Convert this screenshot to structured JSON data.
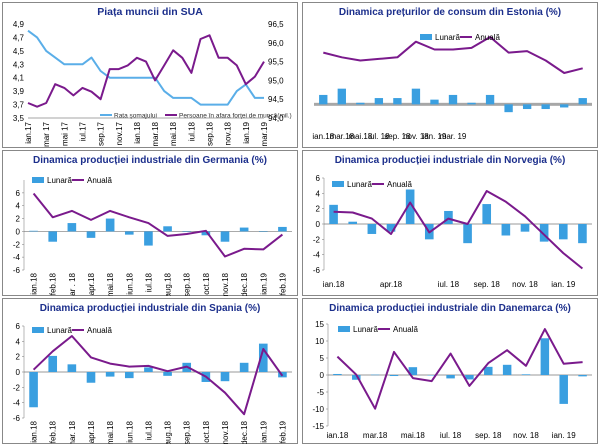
{
  "colors": {
    "bar": "#3a9fe0",
    "line": "#7a1a8c",
    "line_blue": "#5aaee8",
    "title": "#1c2f8c",
    "band": "#a7a7a7"
  },
  "chart_data": [
    {
      "id": "p1",
      "type": "line",
      "title": "Piața muncii din SUA",
      "categories": [
        "ian.17",
        "feb.17",
        "mar.17",
        "apr.17",
        "mai 17",
        "iun.17",
        "iul.17",
        "aug.17",
        "sep.17",
        "oct.17",
        "nov.17",
        "dec.17",
        "ian.18",
        "feb.18",
        "mar.18",
        "apr.18",
        "mai.18",
        "iun.18",
        "iul.18",
        "aug.18",
        "sep.18",
        "oct.18",
        "nov.18",
        "dec.18",
        "ian.19",
        "feb.19",
        "mar.19"
      ],
      "xticks": [
        "ian.17",
        "mar 17",
        "mai 17",
        "iul.17",
        "sep.17",
        "nov.17",
        "ian.18",
        "mar.18",
        "mai.18",
        "iul.18",
        "sep.18",
        "nov.18",
        "ian.19",
        "mar.19"
      ],
      "xtick_index": [
        0,
        2,
        4,
        6,
        8,
        10,
        12,
        14,
        16,
        18,
        20,
        22,
        24,
        26
      ],
      "ylim": [
        3.5,
        4.9
      ],
      "yticks": [
        3.5,
        3.7,
        3.9,
        4.1,
        4.3,
        4.5,
        4.7,
        4.9
      ],
      "y2lim": [
        94.0,
        96.5
      ],
      "y2ticks": [
        94.0,
        94.5,
        95.0,
        95.5,
        96.0,
        96.5
      ],
      "series": [
        {
          "name": "Rata șomajului",
          "axis": "left",
          "color": "#5aaee8",
          "values": [
            4.8,
            4.7,
            4.5,
            4.4,
            4.3,
            4.3,
            4.3,
            4.4,
            4.2,
            4.1,
            4.1,
            4.1,
            4.1,
            4.1,
            4.1,
            3.9,
            3.8,
            3.8,
            3.8,
            3.7,
            3.7,
            3.7,
            3.7,
            3.9,
            4.0,
            3.8,
            3.8
          ]
        },
        {
          "name": "Persoane în afara forței de muncă(mil.)",
          "axis": "right",
          "color": "#7a1a8c",
          "values": [
            94.4,
            94.3,
            94.4,
            94.9,
            94.8,
            94.6,
            94.8,
            94.7,
            94.5,
            95.3,
            95.3,
            95.4,
            95.6,
            95.5,
            95.0,
            95.4,
            95.8,
            95.6,
            95.2,
            96.1,
            96.2,
            95.6,
            95.6,
            95.4,
            94.9,
            95.1,
            95.5
          ]
        }
      ]
    },
    {
      "id": "p2",
      "type": "bar+line",
      "title": "Dinamica prețurilor de consum din Estonia (%)",
      "legend": [
        "Lunară",
        "Anuală"
      ],
      "categories": [
        "ian.18",
        "feb.18",
        "mar.18",
        "apr.18",
        "mai.18",
        "iun.18",
        "iul.18",
        "aug.18",
        "sep.18",
        "oct.18",
        "nov.18",
        "dec.18",
        "ian.19",
        "feb.19",
        "mar.19"
      ],
      "xticks": [
        "ian.18",
        "mar.18",
        "mai.18",
        "iul. 18",
        "sep. 18",
        "nov. 18",
        "ian. 19",
        "mar. 19"
      ],
      "ylim": [
        -1,
        5
      ],
      "zero_band": true,
      "series": [
        {
          "name": "Lunară",
          "kind": "bar",
          "values": [
            0.6,
            1.0,
            0.1,
            0.4,
            0.4,
            1.0,
            0.3,
            0.6,
            0.1,
            0.6,
            -0.5,
            -0.3,
            -0.3,
            -0.2,
            0.4
          ]
        },
        {
          "name": "Anuală",
          "kind": "line",
          "values": [
            3.3,
            3.0,
            2.8,
            2.9,
            3.0,
            4.0,
            3.5,
            3.5,
            3.6,
            4.3,
            3.3,
            3.4,
            2.8,
            2.0,
            2.3
          ]
        }
      ]
    },
    {
      "id": "p3",
      "type": "bar+line",
      "title": "Dinamica producției industriale din Germania (%)",
      "legend": [
        "Lunară",
        "Anuală"
      ],
      "categories": [
        "ian.18",
        "feb.18",
        "mar.18",
        "apr.18",
        "mai.18",
        "iun.18",
        "iul.18",
        "aug.18",
        "sep.18",
        "oct.18",
        "nov.18",
        "dec.18",
        "ian.19",
        "feb.19"
      ],
      "xticks": [
        "ian.18",
        "feb.18",
        "mar . 18",
        "apr.18",
        "mai.18",
        "iun.18",
        "iul.18",
        "aug.18",
        "sep.18",
        "oct.18",
        "nov.18",
        "dec.18",
        "ian.19",
        "feb.19"
      ],
      "ylim": [
        -6,
        8
      ],
      "yticks": [
        -6,
        -4,
        -2,
        0,
        2,
        4,
        6
      ],
      "series": [
        {
          "name": "Lunară",
          "kind": "bar",
          "values": [
            0.1,
            -1.6,
            1.3,
            -1.0,
            2.0,
            -0.5,
            -2.2,
            0.8,
            0.0,
            -0.6,
            -1.6,
            0.6,
            0.0,
            0.7
          ]
        },
        {
          "name": "Anuală",
          "kind": "line",
          "values": [
            5.9,
            2.2,
            3.2,
            1.8,
            3.2,
            2.2,
            1.3,
            -0.7,
            -0.4,
            0.1,
            -3.9,
            -2.7,
            -2.8,
            -0.5
          ]
        }
      ]
    },
    {
      "id": "p4",
      "type": "bar+line",
      "title": "Dinamica producției industriale din Norvegia (%)",
      "legend": [
        "Lunară",
        "Anuală"
      ],
      "categories": [
        "ian.18",
        "feb.18",
        "mar.18",
        "apr.18",
        "mai.18",
        "iun.18",
        "iul.18",
        "aug.18",
        "sep.18",
        "oct.18",
        "nov.18",
        "dec.18",
        "ian.19",
        "feb.19"
      ],
      "xticks": [
        "ian.18",
        "apr.18",
        "iul. 18",
        "sep. 18",
        "nov. 18",
        "ian. 19"
      ],
      "xtick_index": [
        0,
        3,
        6,
        8,
        10,
        12
      ],
      "ylim": [
        -6,
        6
      ],
      "yticks": [
        -6,
        -4,
        -2,
        0,
        2,
        4,
        6
      ],
      "series": [
        {
          "name": "Lunară",
          "kind": "bar",
          "values": [
            2.5,
            0.3,
            -1.3,
            -1.0,
            4.5,
            -2.0,
            1.7,
            -2.5,
            2.6,
            -1.5,
            -1.0,
            -2.3,
            -2.0,
            -2.5
          ]
        },
        {
          "name": "Anuală",
          "kind": "line",
          "values": [
            1.6,
            1.5,
            0.7,
            -1.3,
            2.8,
            -1.1,
            0.7,
            0.0,
            4.3,
            2.9,
            1.0,
            -1.4,
            -3.8,
            -5.8
          ]
        }
      ]
    },
    {
      "id": "p5",
      "type": "bar+line",
      "title": "Dinamica producției industriale din Spania (%)",
      "legend": [
        "Lunară",
        "Anuală"
      ],
      "categories": [
        "ian.18",
        "feb.18",
        "mar.18",
        "apr.18",
        "mai.18",
        "iun.18",
        "iul.18",
        "aug.18",
        "sep.18",
        "oct.18",
        "nov.18",
        "dec.18",
        "ian.19",
        "feb.19"
      ],
      "xticks": [
        "ian.18",
        "feb.18",
        "mar. 18",
        "apr.18",
        "mai.18",
        "iun.18",
        "iul.18",
        "aug.18",
        "sep.18",
        "oct.18",
        "nov.18",
        "dec.18",
        "ian.19",
        "feb.19"
      ],
      "ylim": [
        -6,
        6
      ],
      "yticks": [
        -6,
        -4,
        -2,
        0,
        2,
        4,
        6
      ],
      "series": [
        {
          "name": "Lunară",
          "kind": "bar",
          "values": [
            -4.6,
            2.1,
            1.0,
            -1.4,
            -0.6,
            -0.8,
            0.6,
            -0.5,
            1.2,
            -1.3,
            -1.2,
            1.2,
            3.7,
            -0.7
          ]
        },
        {
          "name": "Anuală",
          "kind": "line",
          "values": [
            0.3,
            2.7,
            4.7,
            1.9,
            1.1,
            0.7,
            0.8,
            0.1,
            0.7,
            -0.6,
            -2.7,
            -5.5,
            3.0,
            -0.5
          ]
        }
      ]
    },
    {
      "id": "p6",
      "type": "bar+line",
      "title": "Dinamica producției industriale din Danemarca (%)",
      "legend": [
        "Lunară",
        "Anuală"
      ],
      "categories": [
        "ian.18",
        "feb.18",
        "mar.18",
        "apr.18",
        "mai.18",
        "iun.18",
        "iul.18",
        "aug.18",
        "sep.18",
        "oct.18",
        "nov.18",
        "dec.18",
        "ian.19",
        "feb.19"
      ],
      "xticks": [
        "ian.18",
        "mar.18",
        "mai.18",
        "iul. 18",
        "sep. 18",
        "nov. 18",
        "ian. 19"
      ],
      "xtick_index": [
        0,
        2,
        4,
        6,
        8,
        10,
        12
      ],
      "ylim": [
        -15,
        15
      ],
      "yticks": [
        -15,
        -10,
        -5,
        0,
        5,
        10,
        15
      ],
      "series": [
        {
          "name": "Lunară",
          "kind": "bar",
          "values": [
            0.3,
            -1.4,
            0.1,
            -0.3,
            2.3,
            0.0,
            -1.0,
            -1.3,
            2.4,
            3.0,
            0.2,
            10.8,
            -8.5,
            -0.4
          ]
        },
        {
          "name": "Anuală",
          "kind": "line",
          "values": [
            5.4,
            0.1,
            -9.9,
            6.8,
            -0.9,
            -1.8,
            6.3,
            -3.2,
            3.5,
            7.3,
            2.7,
            13.5,
            3.3,
            3.8
          ]
        }
      ]
    }
  ]
}
